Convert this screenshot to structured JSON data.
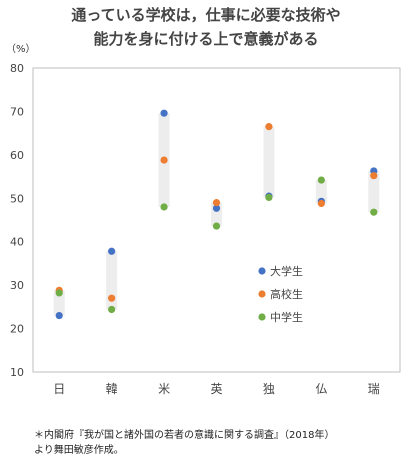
{
  "chart_data": {
    "type": "scatter",
    "title_lines": [
      "通っている学校は，仕事に必要な技術や",
      "能力を身に付ける上で意義がある"
    ],
    "unit_label": "（%）",
    "categories": [
      "日",
      "韓",
      "米",
      "英",
      "独",
      "仏",
      "瑞"
    ],
    "ylim": [
      10,
      80
    ],
    "yticks": [
      10,
      20,
      30,
      40,
      50,
      60,
      70,
      80
    ],
    "grid": false,
    "legend_position": "inside-lower-right",
    "series": [
      {
        "name": "大学生",
        "color": "#4472C4",
        "values": [
          23.0,
          37.8,
          69.6,
          47.7,
          50.5,
          49.3,
          56.3
        ]
      },
      {
        "name": "高校生",
        "color": "#ED7D31",
        "values": [
          28.8,
          27.0,
          58.8,
          49.0,
          66.5,
          48.8,
          55.2
        ]
      },
      {
        "name": "中学生",
        "color": "#70AD47",
        "values": [
          28.2,
          24.4,
          48.0,
          43.6,
          50.2,
          54.2,
          46.8
        ]
      }
    ],
    "range_band_color": "#EDEDED"
  },
  "footnote": {
    "line1": "＊内閣府『我が国と諸外国の若者の意識に関する調査』（2018年）",
    "line2": "より舞田敏彦作成。"
  }
}
